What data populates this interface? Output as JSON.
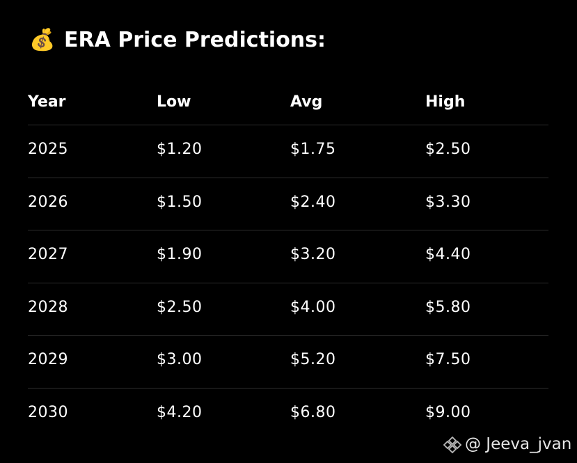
{
  "header": {
    "icon": "💰",
    "title": "ERA Price Predictions:"
  },
  "table": {
    "columns": [
      "Year",
      "Low",
      "Avg",
      "High"
    ],
    "rows": [
      [
        "2025",
        "$1.20",
        "$1.75",
        "$2.50"
      ],
      [
        "2026",
        "$1.50",
        "$2.40",
        "$3.30"
      ],
      [
        "2027",
        "$1.90",
        "$3.20",
        "$4.40"
      ],
      [
        "2028",
        "$2.50",
        "$4.00",
        "$5.80"
      ],
      [
        "2029",
        "$3.00",
        "$5.20",
        "$7.50"
      ],
      [
        "2030",
        "$4.20",
        "$6.80",
        "$9.00"
      ]
    ]
  },
  "footer": {
    "watermark": "@ Jeeva_jvan"
  }
}
